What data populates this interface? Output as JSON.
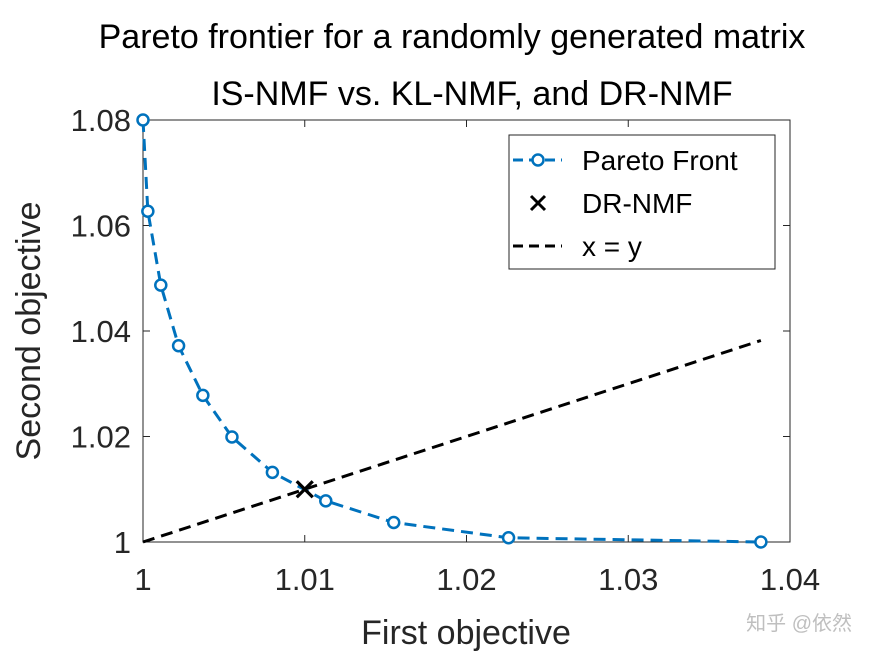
{
  "chart_data": {
    "type": "line",
    "title": [
      "Pareto frontier for a randomly generated matrix",
      "IS-NMF vs. KL-NMF, and DR-NMF"
    ],
    "xlabel": "First objective",
    "ylabel": "Second objective",
    "xlim": [
      1,
      1.04
    ],
    "ylim": [
      1,
      1.08
    ],
    "xticks": [
      1,
      1.01,
      1.02,
      1.03,
      1.04
    ],
    "xtick_labels": [
      "1",
      "1.01",
      "1.02",
      "1.03",
      "1.04"
    ],
    "yticks": [
      1,
      1.02,
      1.04,
      1.06,
      1.08
    ],
    "ytick_labels": [
      "1",
      "1.02",
      "1.04",
      "1.06",
      "1.08"
    ],
    "grid": false,
    "legend_position": "top-right",
    "series": [
      {
        "name": "Pareto Front",
        "style": "dashed-circle",
        "color": "#0072BD",
        "x": [
          1.0,
          1.0003,
          1.0011,
          1.0022,
          1.0037,
          1.0055,
          1.008,
          1.0113,
          1.0155,
          1.0226,
          1.0382
        ],
        "y": [
          1.08,
          1.0627,
          1.0487,
          1.0372,
          1.0278,
          1.0199,
          1.0132,
          1.0078,
          1.0037,
          1.0008,
          1.0
        ]
      },
      {
        "name": "DR-NMF",
        "style": "cross-marker",
        "color": "#000000",
        "x": [
          1.01
        ],
        "y": [
          1.01
        ]
      },
      {
        "name": "x = y",
        "style": "dashed-line",
        "color": "#000000",
        "x": [
          1.0,
          1.0382
        ],
        "y": [
          1.0,
          1.0382
        ]
      }
    ]
  },
  "watermark": "知乎 @依然"
}
